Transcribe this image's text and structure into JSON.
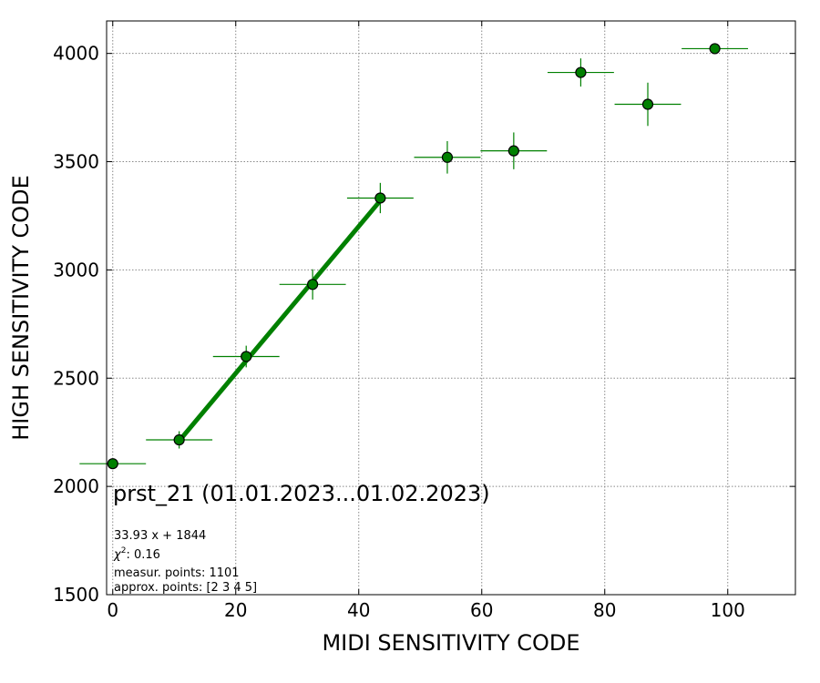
{
  "chart_data": {
    "type": "scatter",
    "title": "",
    "xlabel": "MIDI SENSITIVITY CODE",
    "ylabel": "HIGH SENSITIVITY CODE",
    "xlim": [
      -1,
      111
    ],
    "ylim": [
      1500,
      4150
    ],
    "xticks": [
      0,
      20,
      40,
      60,
      80,
      100
    ],
    "yticks": [
      1500,
      2000,
      2500,
      3000,
      3500,
      4000
    ],
    "xtick_labels": [
      "0",
      "20",
      "40",
      "60",
      "80",
      "100"
    ],
    "ytick_labels": [
      "1500",
      "2000",
      "2500",
      "3000",
      "3500",
      "4000"
    ],
    "grid": true,
    "colors": {
      "marker": "#008000",
      "marker_edge": "#000000",
      "fit": "#008000",
      "errorbar": "#008000",
      "grid": "#888888"
    },
    "series": [
      {
        "points": [
          {
            "x": 0,
            "y": 2105,
            "xerr": 5.4,
            "yerr": 10
          },
          {
            "x": 10.8,
            "y": 2215,
            "xerr": 5.4,
            "yerr": 40
          },
          {
            "x": 21.7,
            "y": 2600,
            "xerr": 5.4,
            "yerr": 50
          },
          {
            "x": 32.5,
            "y": 2933,
            "xerr": 5.4,
            "yerr": 70
          },
          {
            "x": 43.5,
            "y": 3332,
            "xerr": 5.4,
            "yerr": 70
          },
          {
            "x": 54.4,
            "y": 3520,
            "xerr": 5.4,
            "yerr": 75
          },
          {
            "x": 65.2,
            "y": 3550,
            "xerr": 5.4,
            "yerr": 85
          },
          {
            "x": 76.1,
            "y": 3912,
            "xerr": 5.4,
            "yerr": 65
          },
          {
            "x": 87.0,
            "y": 3765,
            "xerr": 5.4,
            "yerr": 100
          },
          {
            "x": 97.9,
            "y": 4022,
            "xerr": 5.4,
            "yerr": 15
          }
        ]
      }
    ],
    "fit": {
      "slope": 33.93,
      "intercept": 1844,
      "x_range": [
        10.8,
        43.5
      ]
    },
    "annotations": {
      "sensor_title": "prst_21 (01.01.2023...01.02.2023)",
      "equation": "33.93 x + 1844",
      "chi2_value": ": 0.16",
      "measur_points": "measur. points: 1101",
      "approx_points": "approx. points: [2 3 4 5]"
    }
  }
}
